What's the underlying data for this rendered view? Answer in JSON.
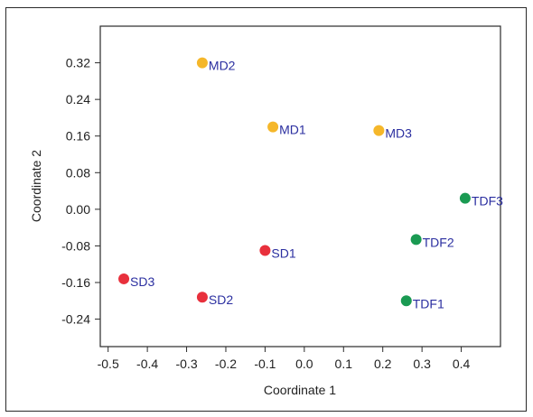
{
  "chart_data": {
    "type": "scatter",
    "title": "",
    "xlabel": "Coordinate 1",
    "ylabel": "Coordinate 2",
    "xlim": [
      -0.52,
      0.5
    ],
    "ylim": [
      -0.3,
      0.4
    ],
    "xticks": [
      "-0.5",
      "-0.4",
      "-0.3",
      "-0.2",
      "-0.1",
      "0.0",
      "0.1",
      "0.2",
      "0.3",
      "0.4"
    ],
    "yticks": [
      "0.32",
      "0.24",
      "0.16",
      "0.08",
      "0.00",
      "-0.08",
      "-0.16",
      "-0.24"
    ],
    "grid": false,
    "colors": {
      "MD": "#f5b72a",
      "SD": "#e8303c",
      "TDF": "#1a9a52"
    },
    "points": [
      {
        "label": "MD2",
        "group": "MD",
        "x": -0.26,
        "y": 0.32
      },
      {
        "label": "MD1",
        "group": "MD",
        "x": -0.08,
        "y": 0.18
      },
      {
        "label": "MD3",
        "group": "MD",
        "x": 0.19,
        "y": 0.172
      },
      {
        "label": "TDF3",
        "group": "TDF",
        "x": 0.41,
        "y": 0.024
      },
      {
        "label": "TDF2",
        "group": "TDF",
        "x": 0.285,
        "y": -0.066
      },
      {
        "label": "TDF1",
        "group": "TDF",
        "x": 0.26,
        "y": -0.2
      },
      {
        "label": "SD1",
        "group": "SD",
        "x": -0.1,
        "y": -0.09
      },
      {
        "label": "SD3",
        "group": "SD",
        "x": -0.46,
        "y": -0.152
      },
      {
        "label": "SD2",
        "group": "SD",
        "x": -0.26,
        "y": -0.192
      }
    ]
  }
}
